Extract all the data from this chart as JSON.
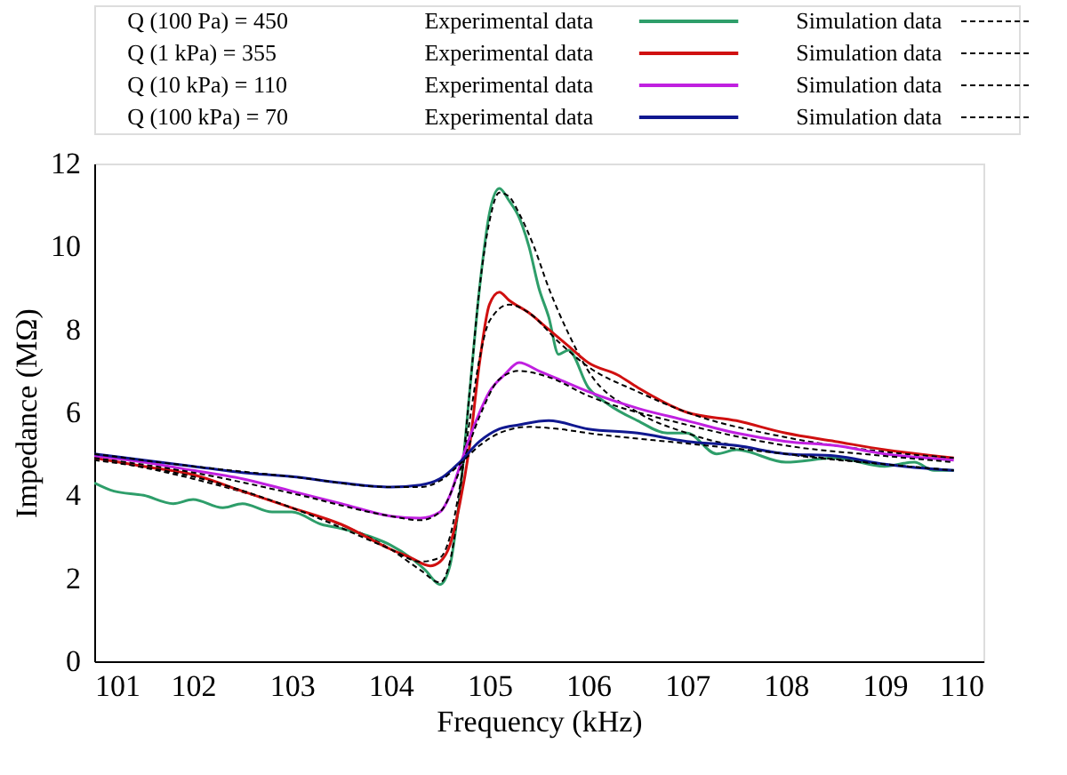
{
  "chart_data": {
    "type": "line",
    "xlabel": "Frequency (kHz)",
    "ylabel": "Impedance  (MΩ)",
    "xlim": [
      101,
      110
    ],
    "xticks": [
      101,
      102,
      103,
      104,
      105,
      106,
      107,
      108,
      109,
      110
    ],
    "ylim": [
      0,
      12
    ],
    "yticks": [
      0,
      2,
      4,
      6,
      8,
      10,
      12
    ],
    "grid": false,
    "legend": "top",
    "marker": "none",
    "annotations": [
      "Q (100 Pa) = 450",
      "Q (1 kPa)   = 355",
      "Q (10 kPa) = 110",
      "Q (100 kPa) = 70"
    ],
    "series": [
      {
        "name": "Experimental data",
        "color": "#2e9e6a",
        "line_style": "solid",
        "x": [
          101,
          101.2,
          101.5,
          101.8,
          102,
          102.3,
          102.5,
          102.8,
          103,
          103.3,
          103.5,
          103.8,
          104,
          104.2,
          104.35,
          104.5,
          104.6,
          104.7,
          104.8,
          104.9,
          105.0,
          105.1,
          105.2,
          105.3,
          105.4,
          105.5,
          105.6,
          105.7,
          105.8,
          106,
          106.2,
          106.5,
          106.8,
          107,
          107.3,
          107.5,
          108,
          108.5,
          109,
          109.3,
          109.5,
          109.7
        ],
        "values": [
          4.3,
          4.1,
          4.0,
          3.8,
          3.9,
          3.7,
          3.8,
          3.6,
          3.6,
          3.3,
          3.2,
          3.0,
          2.8,
          2.5,
          2.2,
          1.85,
          2.3,
          4.0,
          6.5,
          9.0,
          10.8,
          11.4,
          11.1,
          10.7,
          10.0,
          9.0,
          8.3,
          7.4,
          7.5,
          6.6,
          6.2,
          5.8,
          5.5,
          5.5,
          5.0,
          5.1,
          4.8,
          4.9,
          4.7,
          4.8,
          4.6,
          4.6
        ]
      },
      {
        "name": "Simulation data",
        "color": "#000000",
        "line_style": "dashed",
        "x": [
          101,
          102,
          103,
          104,
          104.3,
          104.5,
          104.6,
          104.7,
          104.8,
          104.9,
          105.0,
          105.1,
          105.2,
          105.3,
          105.45,
          105.6,
          105.8,
          106,
          106.5,
          107,
          108,
          109,
          109.7
        ],
        "values": [
          4.9,
          4.4,
          3.7,
          2.7,
          2.2,
          1.9,
          2.4,
          4.0,
          6.5,
          9.0,
          10.6,
          11.3,
          11.2,
          10.8,
          10.0,
          9.0,
          7.9,
          7.0,
          6.0,
          5.5,
          5.0,
          4.75,
          4.6
        ]
      },
      {
        "name": "Experimental data",
        "color": "#d01010",
        "line_style": "solid",
        "x": [
          101,
          101.5,
          102,
          102.5,
          103,
          103.5,
          104,
          104.2,
          104.4,
          104.5,
          104.6,
          104.7,
          104.8,
          104.9,
          105.0,
          105.1,
          105.2,
          105.4,
          105.6,
          105.8,
          106,
          106.3,
          106.5,
          107,
          107.5,
          108,
          108.5,
          109,
          109.7
        ],
        "values": [
          4.9,
          4.7,
          4.5,
          4.1,
          3.7,
          3.3,
          2.7,
          2.5,
          2.3,
          2.4,
          2.8,
          3.8,
          5.2,
          7.2,
          8.6,
          8.9,
          8.7,
          8.4,
          8.0,
          7.6,
          7.2,
          6.9,
          6.6,
          6.0,
          5.8,
          5.5,
          5.3,
          5.1,
          4.9
        ]
      },
      {
        "name": "Simulation data",
        "color": "#000000",
        "line_style": "dashed",
        "x": [
          101,
          102,
          103,
          104,
          104.3,
          104.5,
          104.6,
          104.7,
          104.8,
          104.9,
          105.0,
          105.2,
          105.4,
          105.7,
          106,
          106.5,
          107,
          108,
          109,
          109.7
        ],
        "values": [
          4.85,
          4.45,
          3.7,
          2.7,
          2.4,
          2.5,
          3.0,
          4.2,
          5.8,
          7.3,
          8.2,
          8.6,
          8.4,
          7.7,
          7.1,
          6.5,
          6.0,
          5.4,
          5.05,
          4.9
        ]
      },
      {
        "name": "Experimental data",
        "color": "#c020e0",
        "line_style": "solid",
        "x": [
          101,
          101.5,
          102,
          102.5,
          103,
          103.5,
          104,
          104.3,
          104.5,
          104.6,
          104.7,
          104.8,
          104.9,
          105.0,
          105.15,
          105.3,
          105.5,
          105.7,
          106,
          106.5,
          107,
          107.5,
          108,
          108.5,
          109,
          109.7
        ],
        "values": [
          4.95,
          4.8,
          4.6,
          4.4,
          4.1,
          3.8,
          3.5,
          3.45,
          3.6,
          4.0,
          4.7,
          5.4,
          6.0,
          6.5,
          6.9,
          7.2,
          7.0,
          6.8,
          6.5,
          6.1,
          5.8,
          5.5,
          5.3,
          5.2,
          5.0,
          4.85
        ]
      },
      {
        "name": "Simulation data",
        "color": "#000000",
        "line_style": "dashed",
        "x": [
          101,
          102,
          103,
          104,
          104.3,
          104.5,
          104.7,
          104.9,
          105.1,
          105.3,
          105.6,
          106,
          107,
          108,
          109,
          109.7
        ],
        "values": [
          4.9,
          4.55,
          4.05,
          3.5,
          3.4,
          3.6,
          4.6,
          5.9,
          6.8,
          7.0,
          6.85,
          6.4,
          5.7,
          5.2,
          4.95,
          4.8
        ]
      },
      {
        "name": "Experimental data",
        "color": "#101890",
        "line_style": "solid",
        "x": [
          101,
          101.5,
          102,
          102.5,
          103,
          103.5,
          104,
          104.3,
          104.5,
          104.7,
          104.9,
          105.1,
          105.3,
          105.6,
          106,
          106.5,
          107,
          107.5,
          108,
          108.5,
          109,
          109.7
        ],
        "values": [
          5.0,
          4.85,
          4.7,
          4.55,
          4.45,
          4.3,
          4.2,
          4.25,
          4.4,
          4.8,
          5.3,
          5.6,
          5.7,
          5.8,
          5.6,
          5.5,
          5.3,
          5.2,
          5.0,
          4.95,
          4.75,
          4.6
        ]
      },
      {
        "name": "Simulation data",
        "color": "#000000",
        "line_style": "dashed",
        "x": [
          101,
          102,
          103,
          104,
          104.3,
          104.5,
          104.7,
          104.9,
          105.1,
          105.4,
          105.7,
          106,
          107,
          108,
          109,
          109.7
        ],
        "values": [
          5.0,
          4.7,
          4.45,
          4.2,
          4.2,
          4.35,
          4.75,
          5.2,
          5.5,
          5.65,
          5.6,
          5.5,
          5.25,
          5.0,
          4.75,
          4.6
        ]
      }
    ]
  }
}
